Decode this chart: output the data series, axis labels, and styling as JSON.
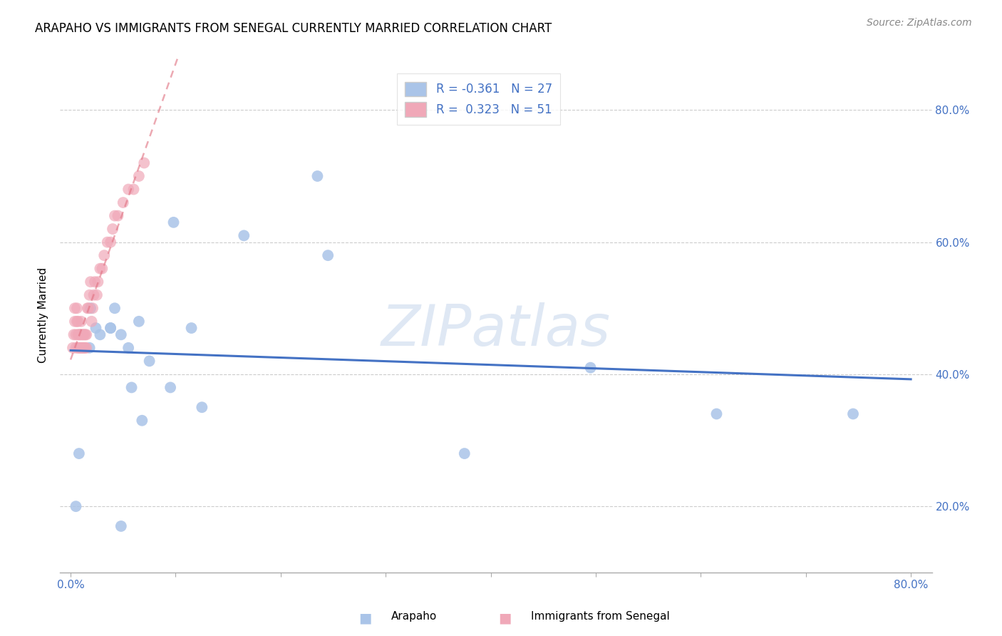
{
  "title": "ARAPAHO VS IMMIGRANTS FROM SENEGAL CURRENTLY MARRIED CORRELATION CHART",
  "source": "Source: ZipAtlas.com",
  "ylabel": "Currently Married",
  "xlim": [
    -0.01,
    0.82
  ],
  "ylim": [
    0.1,
    0.88
  ],
  "xtick_vals": [
    0.0,
    0.1,
    0.2,
    0.3,
    0.4,
    0.5,
    0.6,
    0.7,
    0.8
  ],
  "xtick_edge_labels": {
    "0": "0.0%",
    "8": "80.0%"
  },
  "ytick_vals": [
    0.2,
    0.4,
    0.6,
    0.8
  ],
  "ytick_labels": [
    "20.0%",
    "40.0%",
    "60.0%",
    "80.0%"
  ],
  "legend_blue_r": "-0.361",
  "legend_blue_n": "27",
  "legend_pink_r": "0.323",
  "legend_pink_n": "51",
  "legend_label_blue": "Arapaho",
  "legend_label_pink": "Immigrants from Senegal",
  "blue_color": "#aac4e8",
  "pink_color": "#f0a8b8",
  "blue_line_color": "#4472c4",
  "pink_line_color": "#e07080",
  "pink_dash_color": "#e8a8b8",
  "tick_label_color": "#4472c4",
  "watermark": "ZIPatlas",
  "arapaho_x": [
    0.005,
    0.008,
    0.018,
    0.024,
    0.038,
    0.042,
    0.048,
    0.055,
    0.065,
    0.075,
    0.095,
    0.098,
    0.125,
    0.165,
    0.235,
    0.245,
    0.375,
    0.495,
    0.615,
    0.745,
    0.038,
    0.058,
    0.028,
    0.019,
    0.115,
    0.068,
    0.048
  ],
  "arapaho_y": [
    0.2,
    0.28,
    0.44,
    0.47,
    0.47,
    0.5,
    0.46,
    0.44,
    0.48,
    0.42,
    0.38,
    0.63,
    0.35,
    0.61,
    0.7,
    0.58,
    0.28,
    0.41,
    0.34,
    0.34,
    0.47,
    0.38,
    0.46,
    0.5,
    0.47,
    0.33,
    0.17
  ],
  "senegal_x": [
    0.002,
    0.003,
    0.004,
    0.004,
    0.005,
    0.005,
    0.006,
    0.006,
    0.007,
    0.007,
    0.007,
    0.008,
    0.008,
    0.009,
    0.009,
    0.01,
    0.01,
    0.01,
    0.011,
    0.011,
    0.012,
    0.012,
    0.013,
    0.013,
    0.014,
    0.014,
    0.015,
    0.015,
    0.016,
    0.017,
    0.018,
    0.019,
    0.02,
    0.021,
    0.022,
    0.023,
    0.025,
    0.026,
    0.028,
    0.03,
    0.032,
    0.035,
    0.038,
    0.04,
    0.042,
    0.045,
    0.05,
    0.055,
    0.06,
    0.065,
    0.07
  ],
  "senegal_y": [
    0.44,
    0.46,
    0.48,
    0.5,
    0.44,
    0.46,
    0.48,
    0.5,
    0.44,
    0.46,
    0.48,
    0.44,
    0.46,
    0.44,
    0.46,
    0.44,
    0.46,
    0.48,
    0.44,
    0.46,
    0.44,
    0.46,
    0.44,
    0.46,
    0.44,
    0.46,
    0.44,
    0.46,
    0.5,
    0.5,
    0.52,
    0.54,
    0.48,
    0.5,
    0.52,
    0.54,
    0.52,
    0.54,
    0.56,
    0.56,
    0.58,
    0.6,
    0.6,
    0.62,
    0.64,
    0.64,
    0.66,
    0.68,
    0.68,
    0.7,
    0.72
  ]
}
